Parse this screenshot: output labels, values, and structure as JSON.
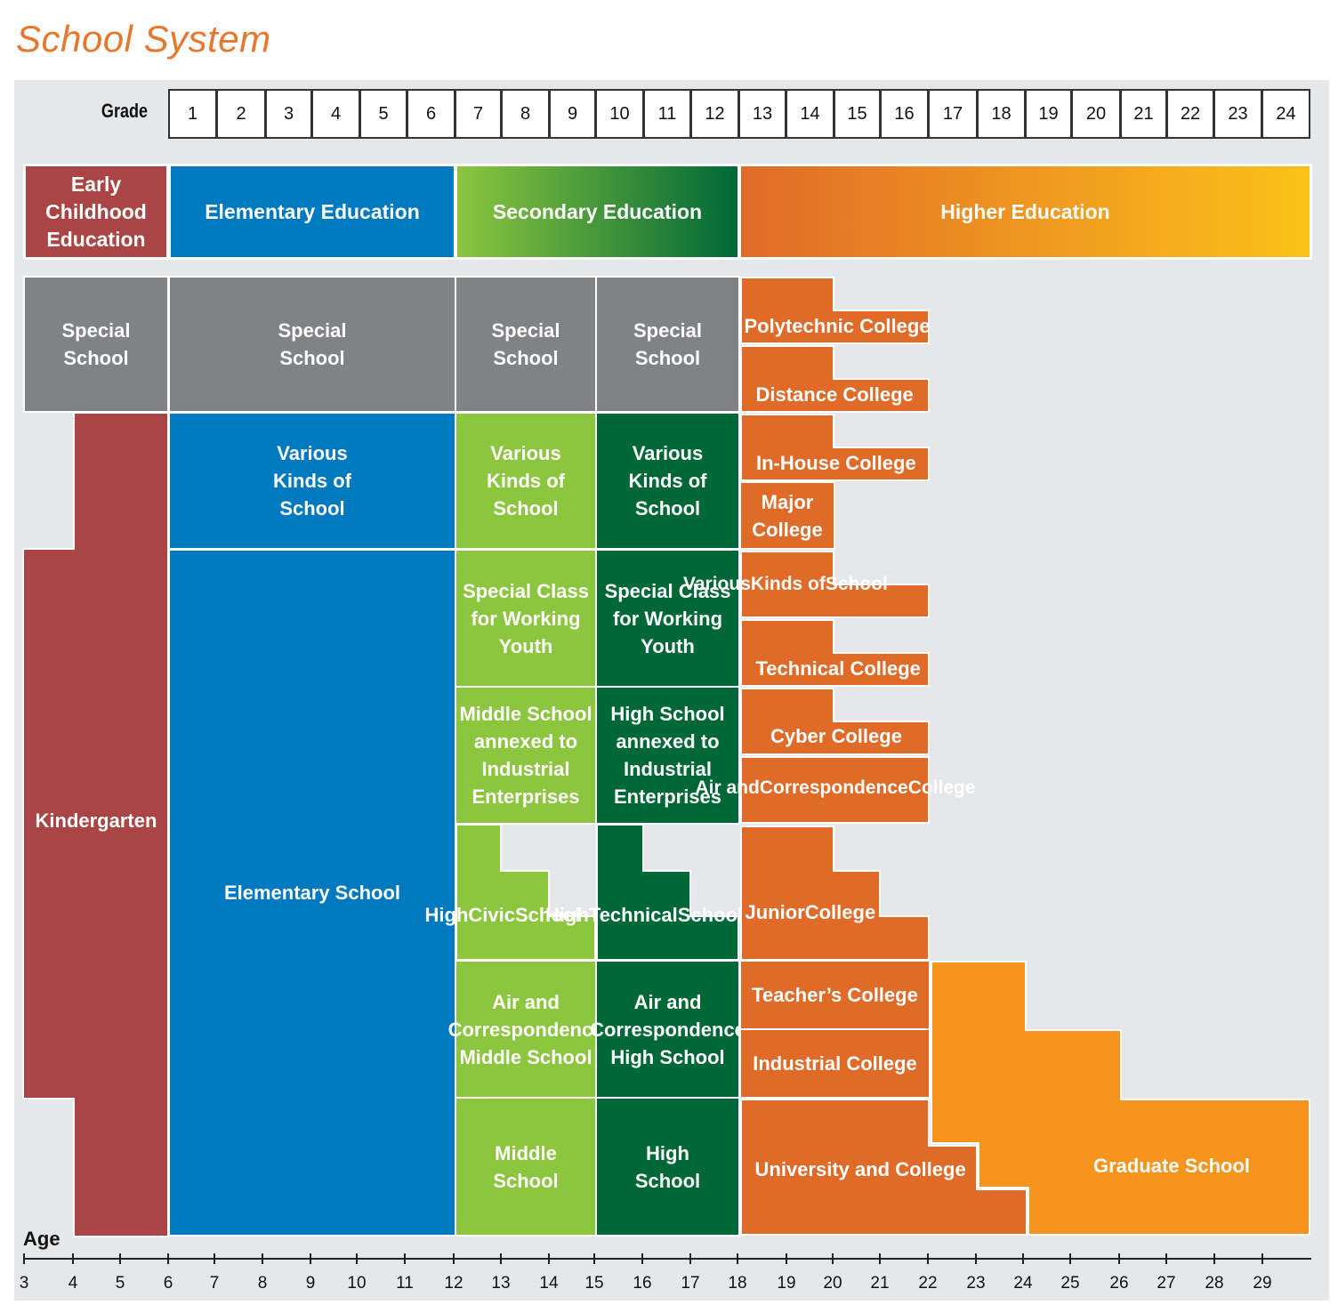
{
  "title": "School System",
  "colors": {
    "early": "#ab4545",
    "elementary": "#0079c1",
    "secondary_light": "#8cc63f",
    "secondary_dark": "#006837",
    "higher": "#e06b28",
    "graduate": "#f7941d",
    "special": "#808285",
    "background": "#e6e7e8",
    "title": "#e8772e"
  },
  "grade_label": "Grade",
  "grades": [
    "1",
    "2",
    "3",
    "4",
    "5",
    "6",
    "7",
    "8",
    "9",
    "10",
    "11",
    "12",
    "13",
    "14",
    "15",
    "16",
    "17",
    "18",
    "19",
    "20",
    "21",
    "22",
    "23",
    "24"
  ],
  "stages": [
    {
      "id": "early",
      "label": "Early Childhood Education",
      "lines": [
        "Early",
        "Childhood",
        "Education"
      ]
    },
    {
      "id": "elementary",
      "label": "Elementary Education",
      "lines": [
        "Elementary Education"
      ]
    },
    {
      "id": "secondary",
      "label": "Secondary Education",
      "lines": [
        "Secondary Education"
      ]
    },
    {
      "id": "higher",
      "label": "Higher Education",
      "lines": [
        "Higher Education"
      ]
    }
  ],
  "schools": {
    "special_early": [
      "Special",
      "School"
    ],
    "special_elementary": [
      "Special",
      "School"
    ],
    "special_middle": [
      "Special",
      "School"
    ],
    "special_high": [
      "Special",
      "School"
    ],
    "kindergarten": [
      "Kindergarten"
    ],
    "various_elementary": [
      "Various",
      "Kinds of",
      "School"
    ],
    "elementary_school": [
      "Elementary School"
    ],
    "various_middle": [
      "Various",
      "Kinds of",
      "School"
    ],
    "various_high": [
      "Various",
      "Kinds of",
      "School"
    ],
    "special_class_middle": [
      "Special Class",
      "for Working",
      "Youth"
    ],
    "special_class_high": [
      "Special Class",
      "for Working",
      "Youth"
    ],
    "middle_industrial": [
      "Middle School",
      "annexed to",
      "Industrial",
      "Enterprises"
    ],
    "high_industrial": [
      "High School",
      "annexed to",
      "Industrial",
      "Enterprises"
    ],
    "high_civic": [
      "High",
      "Civic",
      "School"
    ],
    "high_technical": [
      "High",
      "Technical",
      "School"
    ],
    "air_middle": [
      "Air and",
      "Correspondence",
      "Middle School"
    ],
    "air_high": [
      "Air and",
      "Correspondence",
      "High School"
    ],
    "middle_school": [
      "Middle",
      "School"
    ],
    "high_school": [
      "High",
      "School"
    ],
    "polytechnic": [
      "Polytechnic College"
    ],
    "distance": [
      "Distance College"
    ],
    "inhouse": [
      "In-House College"
    ],
    "major": [
      "Major",
      "College"
    ],
    "various_higher": [
      "Various",
      "Kinds of",
      "School"
    ],
    "technical_college": [
      "Technical College"
    ],
    "cyber": [
      "Cyber College"
    ],
    "air_college": [
      "Air and",
      "Correspondence",
      "College"
    ],
    "junior": [
      "Junior",
      "College"
    ],
    "teachers": [
      "Teacher’s College"
    ],
    "industrial_college": [
      "Industrial College"
    ],
    "university": [
      "University and College"
    ],
    "graduate": [
      "Graduate School"
    ]
  },
  "age_label": "Age",
  "ages": [
    "3",
    "4",
    "5",
    "6",
    "7",
    "8",
    "9",
    "10",
    "11",
    "12",
    "13",
    "14",
    "15",
    "16",
    "17",
    "18",
    "19",
    "20",
    "21",
    "22",
    "23",
    "24",
    "25",
    "26",
    "27",
    "28",
    "29"
  ]
}
